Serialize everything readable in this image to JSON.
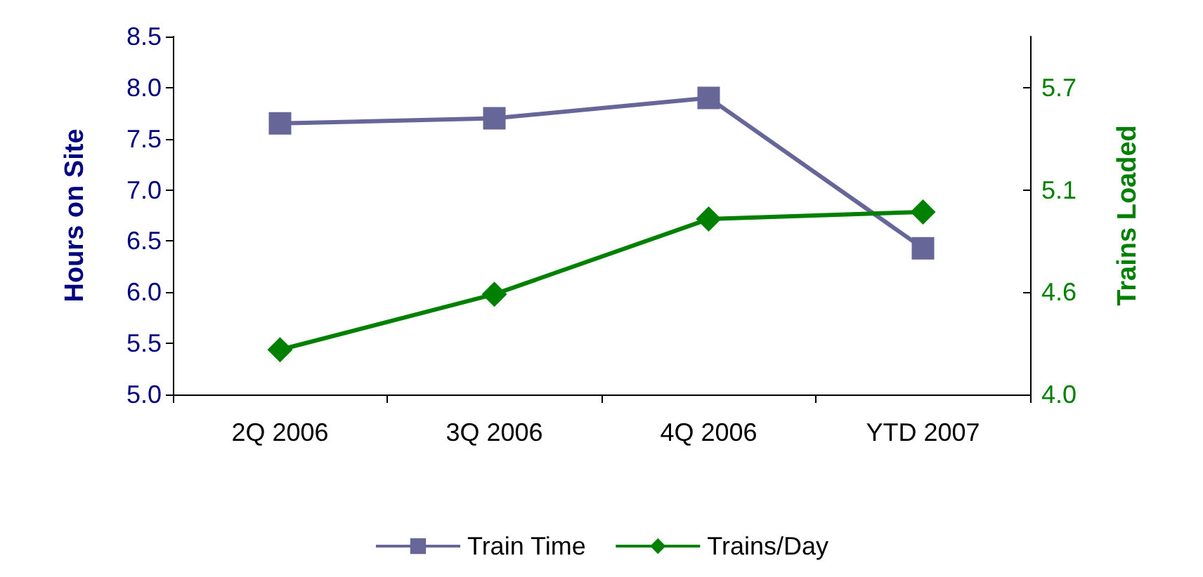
{
  "chart_data": {
    "type": "line",
    "categories": [
      "2Q 2006",
      "3Q 2006",
      "4Q 2006",
      "YTD 2007"
    ],
    "ylabel": "Hours on Site",
    "y2label": "Trains Loaded",
    "ylim": [
      5.0,
      8.5
    ],
    "yticks": [
      {
        "value": 5,
        "label": "5.0"
      },
      {
        "value": 5.5,
        "label": "5.5"
      },
      {
        "value": 6,
        "label": "6.0"
      },
      {
        "value": 6.5,
        "label": "6.5"
      },
      {
        "value": 7,
        "label": "7.0"
      },
      {
        "value": 7.5,
        "label": "7.5"
      },
      {
        "value": 8,
        "label": "8.0"
      },
      {
        "value": 8.5,
        "label": "8.5"
      }
    ],
    "y2lim": [
      4.0,
      6.0
    ],
    "y2ticks": [
      {
        "value": 4,
        "label": "4.0"
      },
      {
        "value": 4.571,
        "label": "4.6"
      },
      {
        "value": 5.143,
        "label": "5.1"
      },
      {
        "value": 5.714,
        "label": "5.7"
      }
    ],
    "series": [
      {
        "name": "Train Time",
        "color": "#666699",
        "marker": "square",
        "values": [
          7.65,
          7.7,
          7.9,
          6.43
        ]
      },
      {
        "name": "Trains/Day",
        "color": "#008000",
        "marker": "diamond",
        "axis": "y2",
        "values": [
          4.25,
          4.56,
          4.98,
          5.02
        ]
      }
    ],
    "legend": "bottom",
    "grid": false
  }
}
